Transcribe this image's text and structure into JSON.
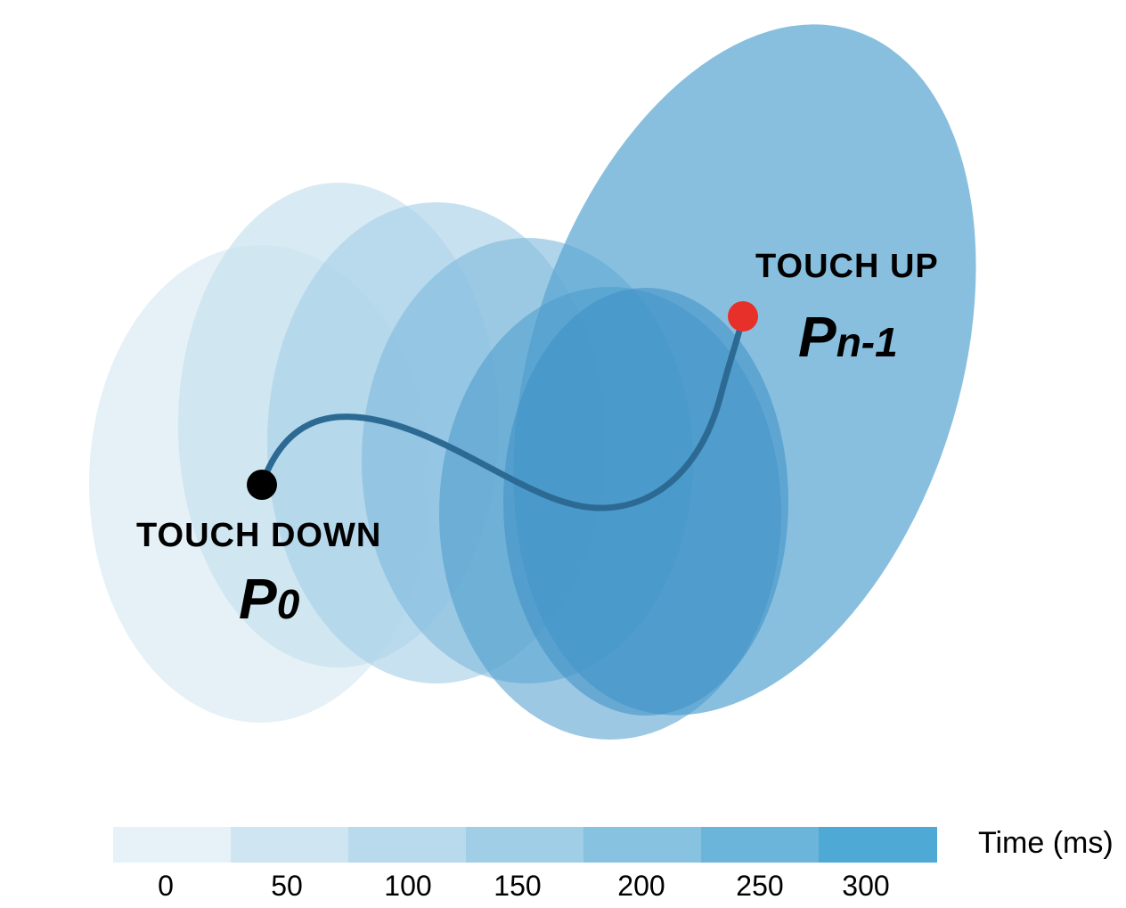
{
  "diagram": {
    "start": {
      "caption": "TOUCH DOWN",
      "point": "P",
      "subscript": "0",
      "color": "#000000"
    },
    "end": {
      "caption": "TOUCH UP",
      "point": "P",
      "subscript": "n-1",
      "color": "#e8302a"
    },
    "stroke_color": "#2c6a94"
  },
  "legend": {
    "title": "Time (ms)",
    "ticks": [
      "0",
      "50",
      "100",
      "150",
      "200",
      "250",
      "300"
    ],
    "colors": [
      "#e6f2f8",
      "#cfe5f1",
      "#b8daec",
      "#a0cee6",
      "#87c2e1",
      "#6bb5db",
      "#4eaad5"
    ]
  },
  "ellipse_colors": [
    "#dcebf4",
    "#c6e0ee",
    "#a6cfe6",
    "#7fbadd",
    "#5aa6d3",
    "#4b9bcc",
    "#3e90c6"
  ]
}
